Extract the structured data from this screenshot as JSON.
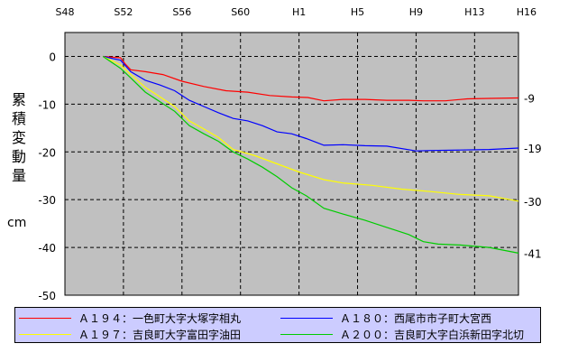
{
  "chart_data": {
    "type": "line",
    "ylabel": "累積変動量",
    "yunit": "cm",
    "ylim": [
      -50,
      5
    ],
    "yticks": [
      0,
      -10,
      -20,
      -30,
      -40,
      -50
    ],
    "x_ticks": [
      "S48",
      "S52",
      "S56",
      "S60",
      "H1",
      "H5",
      "H9",
      "H13",
      "H16"
    ],
    "x_tick_years": [
      1973,
      1977,
      1981,
      1985,
      1989,
      1993,
      1997,
      2001,
      2004
    ],
    "xlim": [
      1973,
      2004
    ],
    "grid": true,
    "series": [
      {
        "name": "Ａ１９４：一色町大字大塚字相丸",
        "color": "#ff0000",
        "end_label": "-9",
        "x": [
          1975.6,
          1976.8,
          1977.1,
          1977.5,
          1978.5,
          1979.7,
          1981,
          1982.5,
          1984,
          1985.5,
          1987,
          1988.5,
          1989.6,
          1990.7,
          1992,
          1993.5,
          1995,
          1996.5,
          1997.5,
          1999,
          2000.5,
          2002,
          2004
        ],
        "y": [
          0,
          -0.3,
          -1.5,
          -2.8,
          -3.2,
          -3.8,
          -5.2,
          -6.3,
          -7.2,
          -7.5,
          -8.2,
          -8.5,
          -8.6,
          -9.3,
          -9,
          -9,
          -9.2,
          -9.2,
          -9.3,
          -9.3,
          -8.9,
          -8.8,
          -8.7
        ]
      },
      {
        "name": "Ａ１８０：西尾市市子町大宮西",
        "color": "#0000ff",
        "end_label": "-19",
        "x": [
          1975.6,
          1976.8,
          1977.5,
          1978.5,
          1979.5,
          1980.5,
          1981.5,
          1982.5,
          1983.5,
          1984.5,
          1985.5,
          1986.5,
          1987.5,
          1988.5,
          1989.5,
          1990.7,
          1992,
          1993.5,
          1995,
          1997,
          1998,
          2000,
          2002,
          2004
        ],
        "y": [
          0,
          -0.8,
          -3.2,
          -5,
          -6,
          -7.2,
          -9.2,
          -10.5,
          -11.8,
          -13,
          -13.5,
          -14.5,
          -15.8,
          -16.2,
          -17.2,
          -18.6,
          -18.5,
          -18.7,
          -18.8,
          -19.8,
          -19.7,
          -19.6,
          -19.5,
          -19.2
        ]
      },
      {
        "name": "Ａ１９７：吉良町大字富田字油田",
        "color": "#ffff00",
        "end_label": "-30",
        "x": [
          1975.6,
          1976.8,
          1977.5,
          1978.5,
          1979.5,
          1980.5,
          1981.5,
          1982.5,
          1983.5,
          1984.5,
          1986,
          1987.5,
          1989,
          1990.7,
          1992,
          1994,
          1996,
          1998,
          2000,
          2002,
          2004
        ],
        "y": [
          0,
          -1.8,
          -3.8,
          -6.5,
          -8.5,
          -10.5,
          -13.5,
          -15.2,
          -17,
          -19.5,
          -20.8,
          -22.5,
          -24.2,
          -25.8,
          -26.5,
          -27,
          -27.8,
          -28.3,
          -28.9,
          -29.2,
          -30.3
        ]
      },
      {
        "name": "Ａ２００：吉良町大字白浜新田字北切",
        "color": "#00cc00",
        "end_label": "-41",
        "x": [
          1975.6,
          1976.8,
          1977.5,
          1978.5,
          1979.5,
          1980.5,
          1981.5,
          1982.5,
          1983.5,
          1984.5,
          1985.5,
          1986.5,
          1987.5,
          1988.5,
          1989.5,
          1990.7,
          1992,
          1993.5,
          1995,
          1996.5,
          1997.5,
          1998.5,
          2000,
          2002,
          2004
        ],
        "y": [
          0,
          -2.5,
          -4.5,
          -7.5,
          -9.5,
          -11.5,
          -14.5,
          -16.2,
          -17.8,
          -20,
          -21.5,
          -23.2,
          -25.2,
          -27.5,
          -29.2,
          -31.8,
          -33,
          -34.3,
          -35.8,
          -37.3,
          -38.8,
          -39.3,
          -39.5,
          -40,
          -41.2
        ]
      }
    ]
  }
}
